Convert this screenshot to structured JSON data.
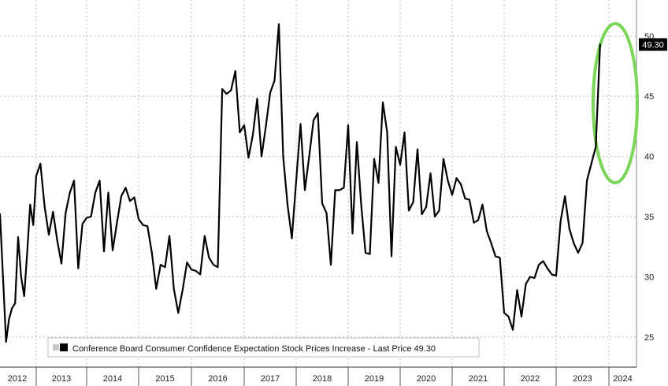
{
  "chart_data": {
    "type": "line",
    "x_start": "2012-01",
    "frequency": "monthly",
    "x_ticks": [
      "2012",
      "2013",
      "2014",
      "2015",
      "2016",
      "2017",
      "2018",
      "2019",
      "2020",
      "2021",
      "2022",
      "2023",
      "2024"
    ],
    "y_ticks": [
      25,
      30,
      35,
      40,
      45,
      50
    ],
    "ylim": [
      22.5,
      53
    ],
    "grid": true,
    "legend_position": "bottom-left",
    "series": [
      {
        "name": "Conference Board Consumer Confidence Expectation Stock Prices Increase - Last Price 49.30",
        "color": "#000000",
        "values": [
          35.2,
          30.0,
          24.6,
          26.5,
          27.4,
          27.8,
          33.3,
          30.0,
          28.4,
          32.0,
          36.0,
          34.3,
          38.4,
          39.4,
          35.8,
          33.5,
          35.4,
          33.0,
          31.1,
          35.3,
          37.0,
          38.0,
          30.7,
          34.4,
          34.9,
          35.0,
          37.0,
          38.0,
          32.1,
          37.0,
          32.2,
          34.5,
          36.7,
          37.4,
          36.3,
          36.6,
          34.8,
          34.3,
          34.2,
          32.0,
          29.0,
          31.0,
          30.8,
          33.4,
          29.0,
          27.0,
          28.9,
          31.2,
          30.6,
          30.5,
          30.2,
          33.4,
          31.6,
          31.0,
          30.8,
          45.6,
          45.2,
          45.5,
          47.1,
          42.0,
          42.6,
          39.9,
          41.8,
          44.8,
          40.0,
          42.5,
          45.3,
          46.3,
          51.0,
          40.0,
          36.0,
          33.2,
          38.0,
          42.7,
          37.2,
          40.0,
          43.0,
          43.6,
          36.1,
          35.3,
          31.0,
          37.2,
          37.2,
          37.4,
          42.6,
          33.6,
          41.2,
          36.0,
          32.0,
          31.9,
          39.8,
          37.8,
          44.5,
          42.0,
          31.7,
          40.8,
          39.3,
          42.0,
          35.5,
          36.2,
          40.6,
          35.2,
          35.8,
          38.6,
          35.0,
          35.5,
          39.8,
          38.0,
          36.8,
          38.2,
          37.7,
          36.5,
          36.4,
          34.5,
          34.7,
          36.0,
          33.8,
          32.8,
          31.7,
          31.6,
          27.0,
          26.7,
          25.6,
          28.9,
          26.7,
          29.4,
          30.0,
          29.9,
          31.0,
          31.3,
          30.7,
          30.2,
          30.1,
          34.6,
          36.7,
          34.0,
          32.8,
          32.0,
          32.8,
          38.0,
          39.4,
          40.8,
          49.3
        ]
      }
    ],
    "last_value_label": "49.30",
    "annotation": {
      "type": "ellipse",
      "color": "#7bd65a"
    }
  }
}
